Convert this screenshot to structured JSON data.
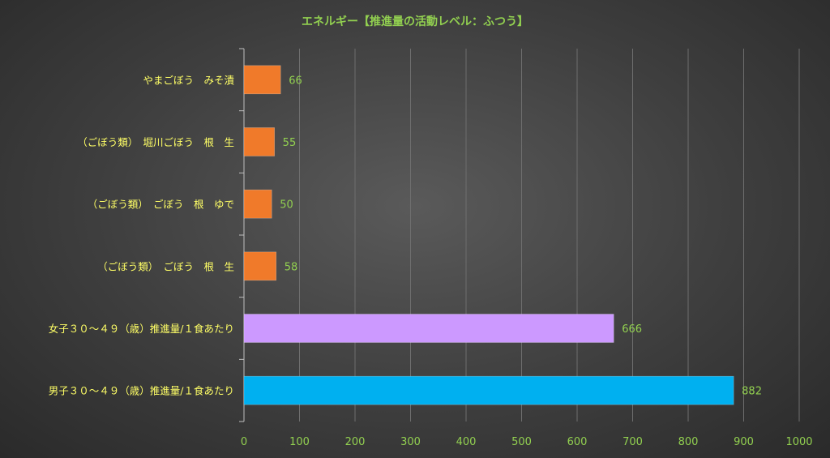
{
  "chart_data": {
    "type": "bar",
    "orientation": "horizontal",
    "title": "エネルギー【推進量の活動レベル：ふつう】",
    "categories": [
      "やまごぼう　みそ漬",
      "（ごぼう類）　堀川ごぼう　根　生",
      "（ごぼう類）　ごぼう　根　ゆで",
      "（ごぼう類）　ごぼう　根　生",
      "女子３０～４９（歳）推進量/１食あたり",
      "男子３０～４９（歳）推進量/１食あたり"
    ],
    "values": [
      66,
      55,
      50,
      58,
      666,
      882
    ],
    "bar_colors": [
      "#f07a2a",
      "#f07a2a",
      "#f07a2a",
      "#f07a2a",
      "#cc99ff",
      "#00b0f0"
    ],
    "xlim": [
      0,
      1000
    ],
    "xticks": [
      "0",
      "100",
      "200",
      "300",
      "400",
      "500",
      "600",
      "700",
      "800",
      "900",
      "1000"
    ],
    "grid": true,
    "legend": "none",
    "colors": {
      "title": "#92d050",
      "category_label": "#ffff66",
      "data_label": "#92d050",
      "tick_label": "#92d050",
      "gridline": "#6e6e6e",
      "axis": "#bfbfbf"
    }
  }
}
